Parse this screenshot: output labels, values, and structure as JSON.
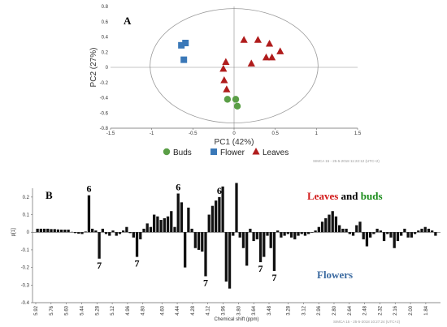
{
  "chart_data": [
    {
      "type": "scatter",
      "panel": "A",
      "xlabel": "PC1 (42%)",
      "ylabel": "PC2 (27%)",
      "xlim": [
        -1.5,
        1.5
      ],
      "ylim": [
        -0.8,
        0.8
      ],
      "x_ticks": [
        "-1.5",
        "-1",
        "-0.5",
        "0",
        "0.5",
        "1",
        "1.5"
      ],
      "y_ticks": [
        "0.8",
        "0.6",
        "0.4",
        "0.2",
        "0",
        "-0.2",
        "-0.4",
        "-0.6",
        "-0.8"
      ],
      "watermark": "SIMCA 15 - 25-5-2018 11:22:12 (UTC+2)",
      "series": [
        {
          "name": "Buds",
          "marker": "circle",
          "color": "#5a9e46",
          "points": [
            [
              -0.08,
              -0.42
            ],
            [
              0.02,
              -0.42
            ],
            [
              0.04,
              -0.51
            ]
          ]
        },
        {
          "name": "Flower",
          "marker": "square",
          "color": "#3a78b8",
          "points": [
            [
              -0.64,
              0.29
            ],
            [
              -0.59,
              0.32
            ],
            [
              -0.61,
              0.1
            ]
          ]
        },
        {
          "name": "Leaves",
          "marker": "triangle",
          "color": "#b01c1c",
          "points": [
            [
              0.12,
              0.36
            ],
            [
              0.29,
              0.36
            ],
            [
              0.43,
              0.31
            ],
            [
              0.56,
              0.21
            ],
            [
              0.39,
              0.13
            ],
            [
              0.46,
              0.13
            ],
            [
              0.21,
              0.05
            ],
            [
              -0.1,
              0.07
            ],
            [
              -0.13,
              -0.02
            ],
            [
              -0.12,
              -0.17
            ],
            [
              -0.09,
              -0.29
            ]
          ]
        }
      ]
    },
    {
      "type": "bar",
      "panel": "B",
      "xlabel": "Chemical shift (ppm)",
      "ylabel": "p[1]",
      "ylim": [
        -0.4,
        0.25
      ],
      "y_ticks": [
        "0.2",
        "0.1",
        "0",
        "-0.1",
        "-0.2",
        "-0.3",
        "-0.4"
      ],
      "x_ticks": [
        "5.92",
        "5.76",
        "5.60",
        "5.44",
        "5.28",
        "5.12",
        "4.96",
        "4.80",
        "4.60",
        "4.44",
        "4.28",
        "4.12",
        "3.96",
        "3.80",
        "3.64",
        "3.48",
        "3.28",
        "3.12",
        "2.96",
        "2.80",
        "2.64",
        "2.48",
        "2.32",
        "2.16",
        "2.00",
        "1.84"
      ],
      "x_range": [
        5.92,
        1.72
      ],
      "watermark": "SIMCA 15 - 25-5-2018 10:27:24 (UTC+2)",
      "values": [
        0.02,
        0.02,
        0.02,
        0.02,
        0.018,
        0.018,
        0.016,
        0.015,
        0.015,
        0.015,
        0.002,
        -0.005,
        -0.008,
        -0.01,
        0.004,
        0.21,
        0.02,
        0.01,
        -0.15,
        0.02,
        -0.01,
        -0.02,
        0.01,
        -0.02,
        -0.01,
        0.01,
        0.03,
        -0.005,
        -0.03,
        -0.14,
        -0.04,
        0.02,
        0.05,
        0.03,
        0.1,
        0.09,
        0.07,
        0.08,
        0.09,
        0.12,
        0.03,
        0.22,
        0.17,
        -0.2,
        0.14,
        0.02,
        -0.09,
        -0.1,
        -0.11,
        -0.25,
        0.1,
        0.15,
        0.18,
        0.2,
        0.26,
        -0.28,
        -0.32,
        -0.02,
        0.28,
        -0.03,
        -0.09,
        -0.19,
        0.02,
        -0.05,
        -0.04,
        -0.17,
        -0.14,
        -0.02,
        -0.09,
        -0.22,
        0.01,
        -0.03,
        -0.02,
        -0.01,
        -0.03,
        -0.04,
        -0.02,
        -0.01,
        -0.02,
        -0.01,
        0.0,
        0.01,
        0.03,
        0.06,
        0.08,
        0.1,
        0.12,
        0.09,
        0.04,
        0.02,
        0.02,
        -0.01,
        -0.02,
        0.04,
        0.06,
        -0.04,
        -0.08,
        -0.03,
        -0.01,
        0.02,
        0.01,
        -0.05,
        -0.01,
        -0.03,
        -0.09,
        -0.05,
        -0.02,
        0.02,
        -0.03,
        -0.03,
        -0.01,
        0.01,
        0.02,
        0.03,
        0.02,
        0.01,
        -0.02
      ],
      "annotations": [
        {
          "text": "6",
          "index": 15,
          "position": "above"
        },
        {
          "text": "7",
          "index": 18,
          "position": "below"
        },
        {
          "text": "7",
          "index": 29,
          "position": "below"
        },
        {
          "text": "6",
          "index": 41,
          "position": "above"
        },
        {
          "text": "6",
          "index": 53,
          "position": "above"
        },
        {
          "text": "7",
          "index": 49,
          "position": "below"
        },
        {
          "text": "7",
          "index": 65,
          "position": "below"
        },
        {
          "text": "7",
          "index": 69,
          "position": "below"
        }
      ],
      "group_labels": {
        "leaves": "Leaves",
        "and": " and ",
        "buds": "buds",
        "flowers": "Flowers"
      },
      "colors": {
        "leaves": "#d21a1a",
        "buds": "#1a8c1a",
        "flowers": "#3b6aa0"
      }
    }
  ]
}
